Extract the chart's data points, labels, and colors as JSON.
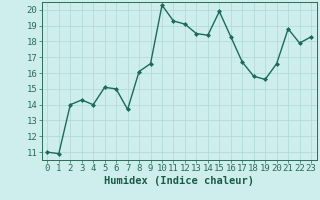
{
  "x": [
    0,
    1,
    2,
    3,
    4,
    5,
    6,
    7,
    8,
    9,
    10,
    11,
    12,
    13,
    14,
    15,
    16,
    17,
    18,
    19,
    20,
    21,
    22,
    23
  ],
  "y": [
    11.0,
    10.9,
    14.0,
    14.3,
    14.0,
    15.1,
    15.0,
    13.7,
    16.1,
    16.6,
    20.3,
    19.3,
    19.1,
    18.5,
    18.4,
    19.9,
    18.3,
    16.7,
    15.8,
    15.6,
    16.6,
    18.8,
    17.9,
    18.3
  ],
  "line_color": "#1a6b5a",
  "marker": "D",
  "markersize": 2.0,
  "linewidth": 1.0,
  "bg_color": "#ceeeed",
  "grid_color": "#aed8d5",
  "xlabel": "Humidex (Indice chaleur)",
  "xlim": [
    -0.5,
    23.5
  ],
  "ylim": [
    10.5,
    20.5
  ],
  "yticks": [
    11,
    12,
    13,
    14,
    15,
    16,
    17,
    18,
    19,
    20
  ],
  "xticks": [
    0,
    1,
    2,
    3,
    4,
    5,
    6,
    7,
    8,
    9,
    10,
    11,
    12,
    13,
    14,
    15,
    16,
    17,
    18,
    19,
    20,
    21,
    22,
    23
  ],
  "tick_color": "#2a6b5a",
  "label_color": "#1a5a4a",
  "xlabel_fontsize": 7.5,
  "tick_fontsize": 6.5
}
